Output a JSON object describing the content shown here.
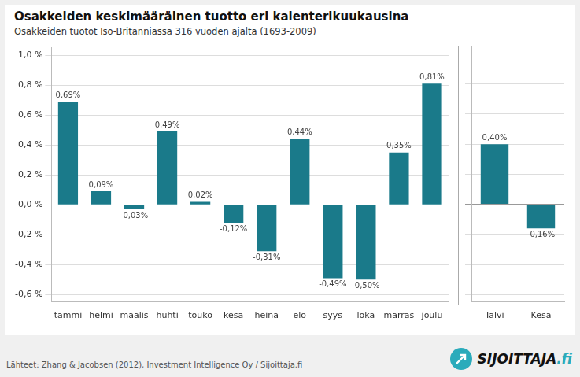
{
  "chart_data": [
    {
      "type": "bar",
      "title": "Osakkeiden keskimääräinen tuotto eri kalenterikuukausina",
      "subtitle": "Osakkeiden tuotot Iso-Britanniassa 316 vuoden ajalta (1693-2009)",
      "annotations": [
        "Lähteet: Zhang & Jacobsen (2012), Investment Intelligence Oy / Sijoittaja.fi",
        "SIJOITTAJA",
        ".fi"
      ],
      "categories": [
        "tammi",
        "helmi",
        "maalis",
        "huhti",
        "touko",
        "kesä",
        "heinä",
        "elo",
        "syys",
        "loka",
        "marras",
        "joulu"
      ],
      "values": [
        0.69,
        0.09,
        -0.03,
        0.49,
        0.02,
        -0.12,
        -0.31,
        0.44,
        -0.49,
        -0.5,
        0.35,
        0.81
      ],
      "value_labels": [
        "0,69%",
        "0,09%",
        "-0,03%",
        "0,49%",
        "0,02%",
        "-0,12%",
        "-0,31%",
        "0,44%",
        "-0,49%",
        "-0,50%",
        "0,35%",
        "0,81%"
      ],
      "data_labels": true,
      "color": "#1a7a8a",
      "ylim": [
        -0.65,
        1.05
      ],
      "yticks": [
        {
          "value": -0.6,
          "label": "-0,6 %"
        },
        {
          "value": -0.4,
          "label": "-0,4 %"
        },
        {
          "value": -0.2,
          "label": "-0,2 %"
        },
        {
          "value": 0,
          "label": "0,0 %"
        },
        {
          "value": 0.2,
          "label": "0,2 %"
        },
        {
          "value": 0.4,
          "label": "0,4 %"
        },
        {
          "value": 0.6,
          "label": "0,6 %"
        },
        {
          "value": 0.8,
          "label": "0,8 %"
        },
        {
          "value": 1.0,
          "label": "1,0 %"
        }
      ],
      "grid": true
    },
    {
      "type": "bar",
      "categories": [
        "Talvi",
        "Kesä"
      ],
      "values": [
        0.4,
        -0.16
      ],
      "value_labels": [
        "0,40%",
        "-0,16%"
      ],
      "data_labels": true,
      "color": "#1a7a8a",
      "ylim": [
        -0.65,
        1.05
      ],
      "yticks": [
        -0.6,
        -0.4,
        -0.2,
        0,
        0.2,
        0.4,
        0.6,
        0.8,
        1.0
      ],
      "tick_labels": "x",
      "grid": true
    }
  ]
}
